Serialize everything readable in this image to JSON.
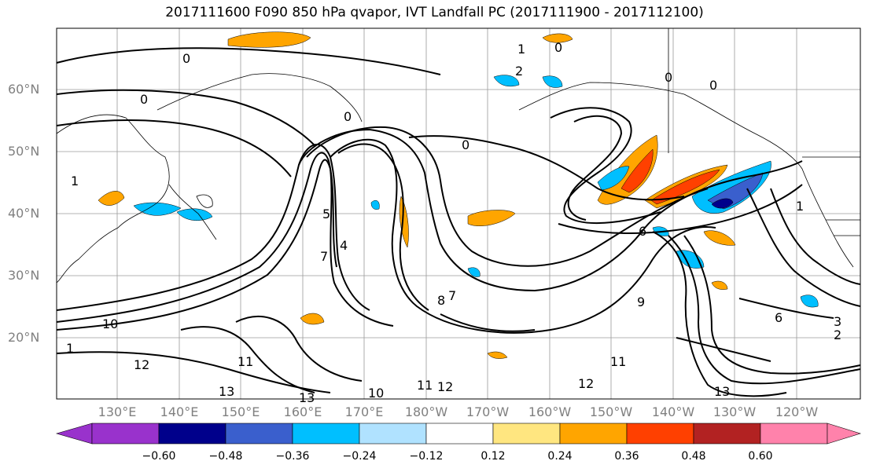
{
  "title": "2017111600 F090 850 hPa qvapor, IVT Landfall PC (2017111900 - 2017112100)",
  "lat_labels": [
    "60°N",
    "50°N",
    "40°N",
    "30°N",
    "20°N"
  ],
  "lon_labels": [
    "130°E",
    "140°E",
    "150°E",
    "160°E",
    "170°E",
    "180°W",
    "170°W",
    "160°W",
    "150°W",
    "140°W",
    "130°W",
    "120°W"
  ],
  "colorbar": {
    "ticks": [
      "−0.60",
      "−0.48",
      "−0.36",
      "−0.24",
      "−0.12",
      "0.12",
      "0.24",
      "0.36",
      "0.48",
      "0.60"
    ],
    "colors": [
      "#9932cc",
      "#00008b",
      "#3a5fcd",
      "#00bfff",
      "#b0e2ff",
      "#ffffff",
      "#ffe680",
      "#ffa500",
      "#ff4000",
      "#b22222",
      "#ff82ab"
    ]
  },
  "contour_labels": [
    "0",
    "0",
    "0",
    "0",
    "0",
    "0",
    "0",
    "1",
    "1",
    "1",
    "1",
    "2",
    "2",
    "3",
    "4",
    "5",
    "6",
    "6",
    "7",
    "7",
    "8",
    "9",
    "10",
    "10",
    "11",
    "11",
    "11",
    "12",
    "12",
    "12",
    "13",
    "13",
    "13"
  ]
}
